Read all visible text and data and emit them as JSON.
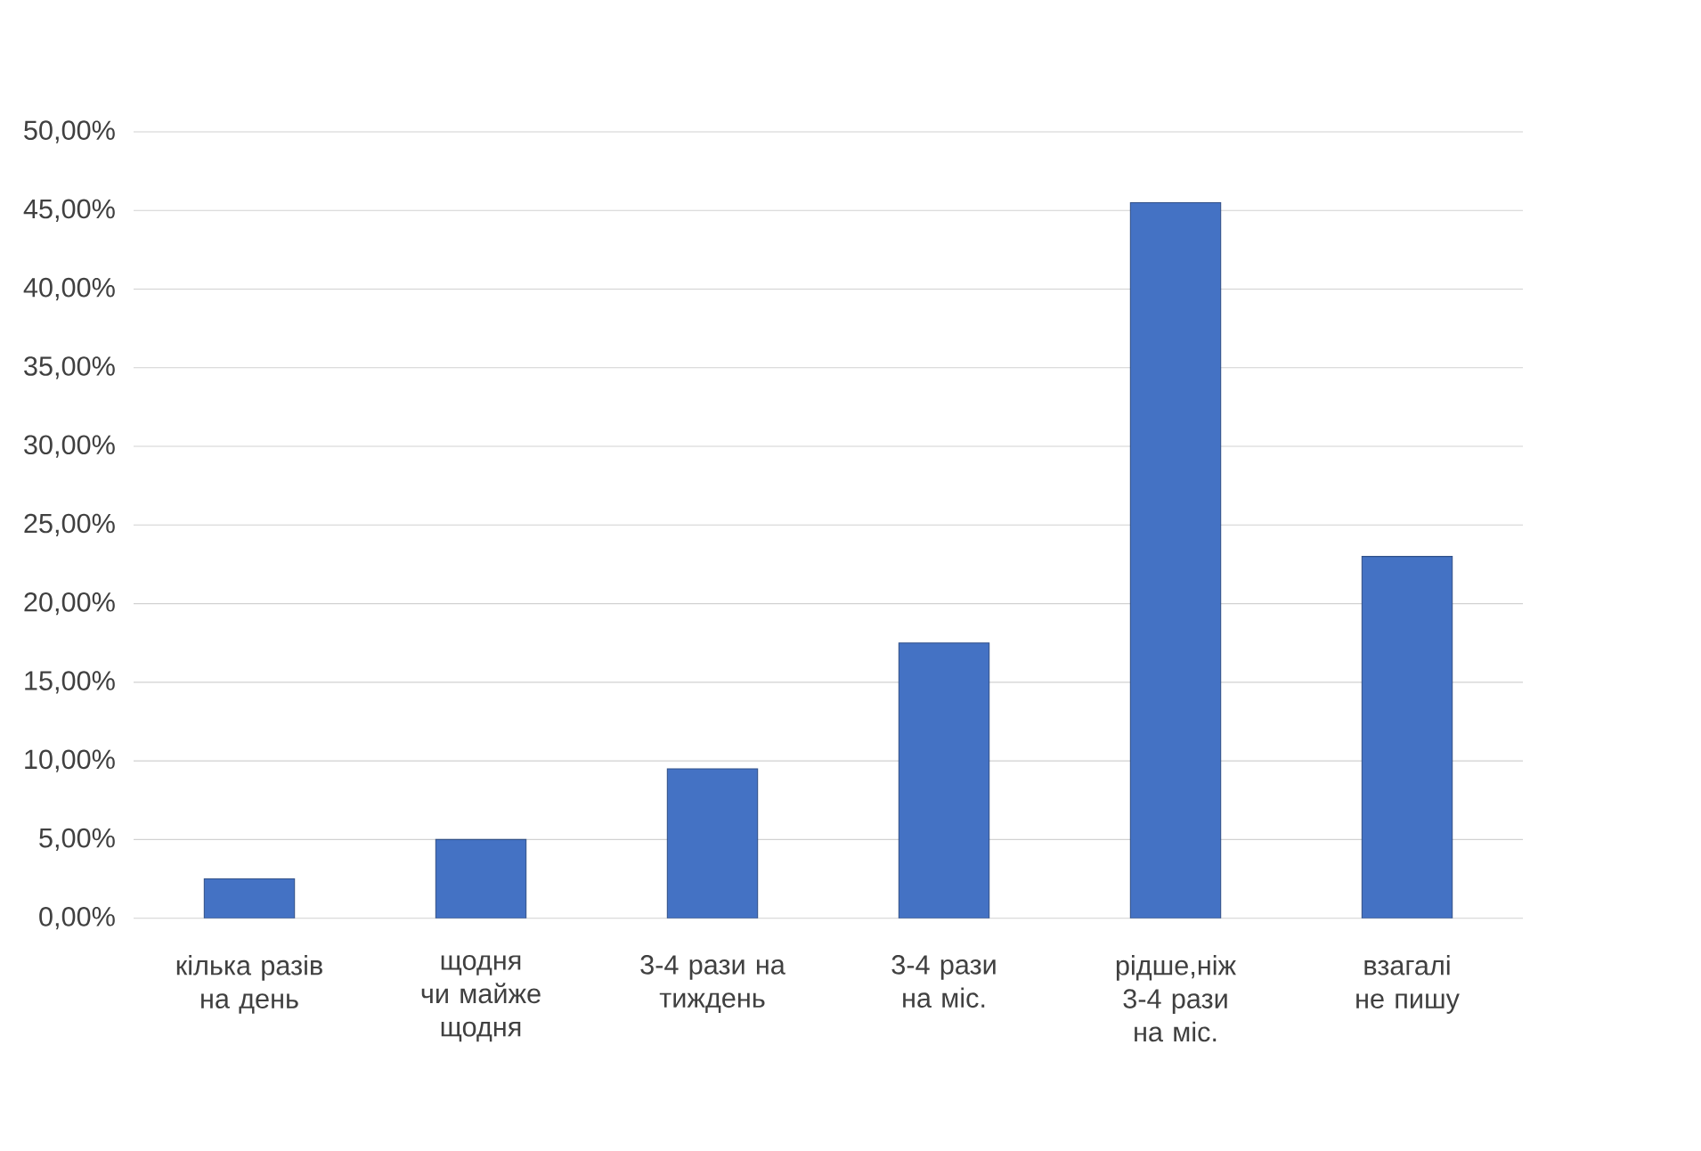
{
  "chart_data": {
    "type": "bar",
    "categories": [
      "кілька разів на день",
      "щодня чи майже щодня",
      "3-4 рази на тиждень",
      "3-4 рази на міс.",
      "рідше,ніж 3-4 рази на міс.",
      "взагалі не пишу"
    ],
    "values": [
      2.5,
      5,
      9.5,
      17.5,
      45.5,
      23
    ],
    "color": "#4472c4",
    "ylim": [
      0,
      50
    ],
    "yticks": [
      {
        "value": 0,
        "label": "0,00%"
      },
      {
        "value": 5,
        "label": "5,00%"
      },
      {
        "value": 10,
        "label": "10,00%"
      },
      {
        "value": 15,
        "label": "15,00%"
      },
      {
        "value": 20,
        "label": "20,00%"
      },
      {
        "value": 25,
        "label": "25,00%"
      },
      {
        "value": 30,
        "label": "30,00%"
      },
      {
        "value": 35,
        "label": "35,00%"
      },
      {
        "value": 40,
        "label": "40,00%"
      },
      {
        "value": 45,
        "label": "45,00%"
      },
      {
        "value": 50,
        "label": "50,00%"
      }
    ],
    "grid": "y"
  }
}
